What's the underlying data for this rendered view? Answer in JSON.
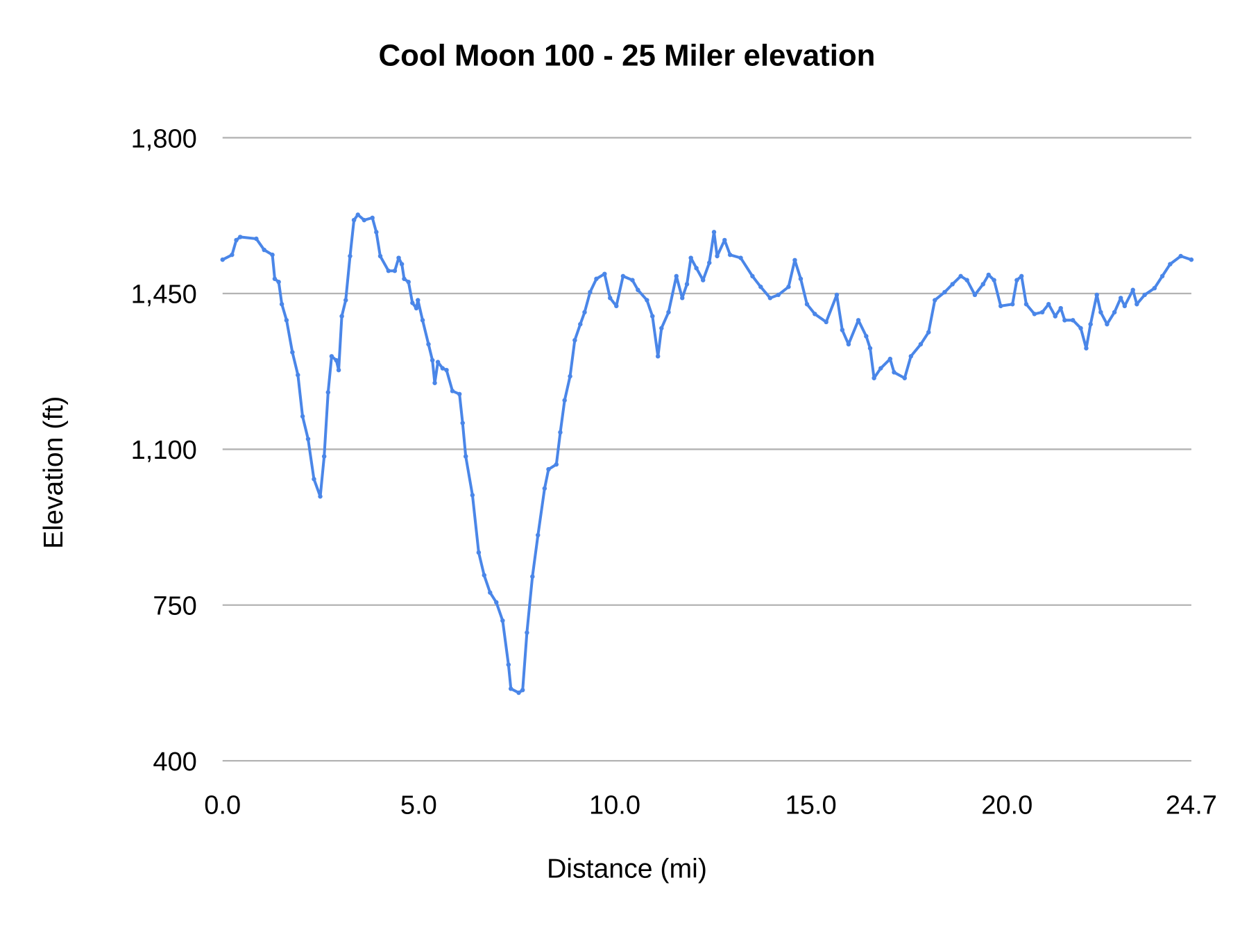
{
  "chart_data": {
    "type": "line",
    "title": "Cool Moon 100 - 25 Miler elevation",
    "xlabel": "Distance (mi)",
    "ylabel": "Elevation (ft)",
    "xlim": [
      0,
      24.7
    ],
    "ylim": [
      400,
      1800
    ],
    "xticks": [
      "0.0",
      "5.0",
      "10.0",
      "15.0",
      "20.0",
      "24.7"
    ],
    "xtick_values": [
      0,
      5,
      10,
      15,
      20,
      24.7
    ],
    "yticks": [
      "400",
      "750",
      "1,100",
      "1,450",
      "1,800"
    ],
    "ytick_values": [
      400,
      750,
      1100,
      1450,
      1800
    ],
    "grid": "horizontal",
    "legend": "none",
    "color": "#4a86e8",
    "x": [
      0,
      0.24,
      0.35,
      0.45,
      0.86,
      1.06,
      1.27,
      1.33,
      1.43,
      1.51,
      1.63,
      1.78,
      1.92,
      2.04,
      2.18,
      2.33,
      2.49,
      2.59,
      2.69,
      2.78,
      2.9,
      2.96,
      3.04,
      3.14,
      3.25,
      3.35,
      3.45,
      3.61,
      3.82,
      3.92,
      4.02,
      4.23,
      4.39,
      4.49,
      4.57,
      4.63,
      4.74,
      4.84,
      4.94,
      4.98,
      5.1,
      5.25,
      5.35,
      5.41,
      5.49,
      5.61,
      5.71,
      5.86,
      6.04,
      6.12,
      6.2,
      6.37,
      6.53,
      6.67,
      6.82,
      6.98,
      7.14,
      7.29,
      7.35,
      7.55,
      7.65,
      7.76,
      7.9,
      8.04,
      8.21,
      8.31,
      8.51,
      8.61,
      8.72,
      8.86,
      8.98,
      9.12,
      9.23,
      9.37,
      9.53,
      9.74,
      9.88,
      10.04,
      10.21,
      10.45,
      10.59,
      10.82,
      10.96,
      11.1,
      11.19,
      11.37,
      11.57,
      11.72,
      11.84,
      11.94,
      12.08,
      12.25,
      12.41,
      12.53,
      12.61,
      12.8,
      12.94,
      13.21,
      13.51,
      13.72,
      13.96,
      14.17,
      14.43,
      14.59,
      14.74,
      14.9,
      15.1,
      15.39,
      15.66,
      15.8,
      15.96,
      16.21,
      16.41,
      16.51,
      16.61,
      16.78,
      17.02,
      17.12,
      17.39,
      17.55,
      17.8,
      18,
      18.16,
      18.41,
      18.61,
      18.82,
      18.98,
      19.18,
      19.39,
      19.53,
      19.67,
      19.84,
      20.14,
      20.25,
      20.37,
      20.49,
      20.7,
      20.9,
      21.06,
      21.23,
      21.37,
      21.47,
      21.68,
      21.88,
      22.02,
      22.13,
      22.29,
      22.39,
      22.55,
      22.74,
      22.9,
      23,
      23.21,
      23.31,
      23.51,
      23.76,
      23.96,
      24.16,
      24.43,
      24.7
    ],
    "y": [
      1526,
      1537,
      1570,
      1577,
      1573,
      1548,
      1537,
      1483,
      1476,
      1426,
      1390,
      1318,
      1267,
      1174,
      1123,
      1033,
      994,
      1084,
      1228,
      1309,
      1300,
      1278,
      1399,
      1435,
      1534,
      1615,
      1627,
      1615,
      1620,
      1588,
      1534,
      1501,
      1501,
      1530,
      1516,
      1483,
      1476,
      1429,
      1417,
      1435,
      1390,
      1336,
      1300,
      1249,
      1296,
      1282,
      1278,
      1231,
      1224,
      1159,
      1084,
      997,
      868,
      817,
      778,
      756,
      715,
      616,
      562,
      553,
      559,
      688,
      814,
      907,
      1012,
      1055,
      1066,
      1138,
      1210,
      1264,
      1345,
      1381,
      1408,
      1453,
      1483,
      1494,
      1440,
      1422,
      1489,
      1480,
      1458,
      1435,
      1399,
      1309,
      1372,
      1408,
      1489,
      1440,
      1471,
      1530,
      1507,
      1480,
      1519,
      1588,
      1534,
      1570,
      1537,
      1530,
      1489,
      1465,
      1440,
      1447,
      1465,
      1525,
      1483,
      1426,
      1404,
      1386,
      1447,
      1368,
      1336,
      1390,
      1354,
      1327,
      1260,
      1282,
      1303,
      1273,
      1260,
      1309,
      1336,
      1363,
      1435,
      1453,
      1471,
      1489,
      1480,
      1447,
      1471,
      1492,
      1480,
      1422,
      1426,
      1480,
      1489,
      1426,
      1404,
      1408,
      1426,
      1399,
      1417,
      1390,
      1390,
      1372,
      1327,
      1381,
      1447,
      1408,
      1381,
      1408,
      1440,
      1422,
      1458,
      1426,
      1447,
      1462,
      1489,
      1516,
      1534,
      1526
    ]
  }
}
